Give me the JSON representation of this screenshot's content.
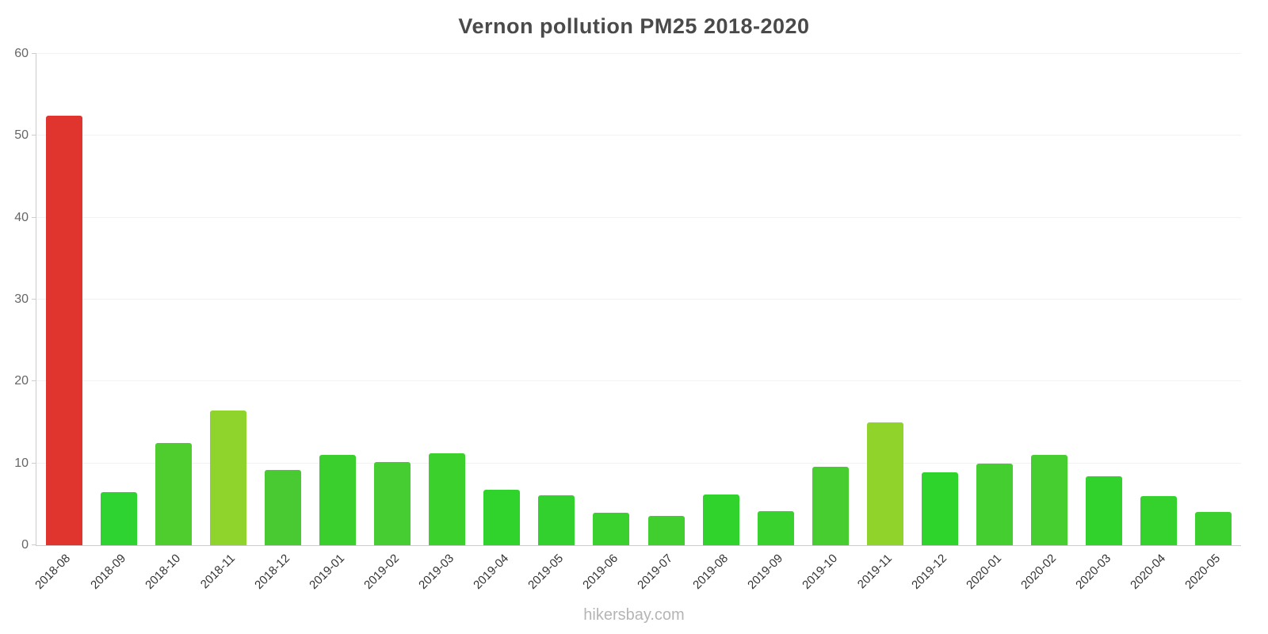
{
  "chart": {
    "title": "Vernon pollution PM25 2018-2020",
    "watermark": "hikersbay.com"
  },
  "chart_data": {
    "type": "bar",
    "title": "Vernon pollution PM25 2018-2020",
    "xlabel": "",
    "ylabel": "",
    "ylim": [
      0,
      60
    ],
    "yticks": [
      0,
      10,
      20,
      30,
      40,
      50,
      60
    ],
    "grid": true,
    "legend": false,
    "categories": [
      "2018-08",
      "2018-09",
      "2018-10",
      "2018-11",
      "2018-12",
      "2019-01",
      "2019-02",
      "2019-03",
      "2019-04",
      "2019-05",
      "2019-06",
      "2019-07",
      "2019-08",
      "2019-09",
      "2019-10",
      "2019-11",
      "2019-12",
      "2020-01",
      "2020-02",
      "2020-03",
      "2020-04",
      "2020-05"
    ],
    "values": [
      52.5,
      6.5,
      12.5,
      16.5,
      9.2,
      11.0,
      10.2,
      11.2,
      6.8,
      6.1,
      4.0,
      3.6,
      6.2,
      4.2,
      9.6,
      15.0,
      8.9,
      10.0,
      11.0,
      8.4,
      6.0,
      4.1
    ],
    "colors": [
      "#e0342f",
      "#2ed331",
      "#4fcd2f",
      "#8ed42c",
      "#49c932",
      "#3bcf2e",
      "#46cd31",
      "#3cd02d",
      "#2fd32c",
      "#33d12e",
      "#3ad02e",
      "#41cf30",
      "#2fd32b",
      "#38d12d",
      "#47cd30",
      "#8fd32b",
      "#2ed42b",
      "#44ce30",
      "#46cd2f",
      "#31d22b",
      "#35d12c",
      "#3bd02d"
    ]
  }
}
